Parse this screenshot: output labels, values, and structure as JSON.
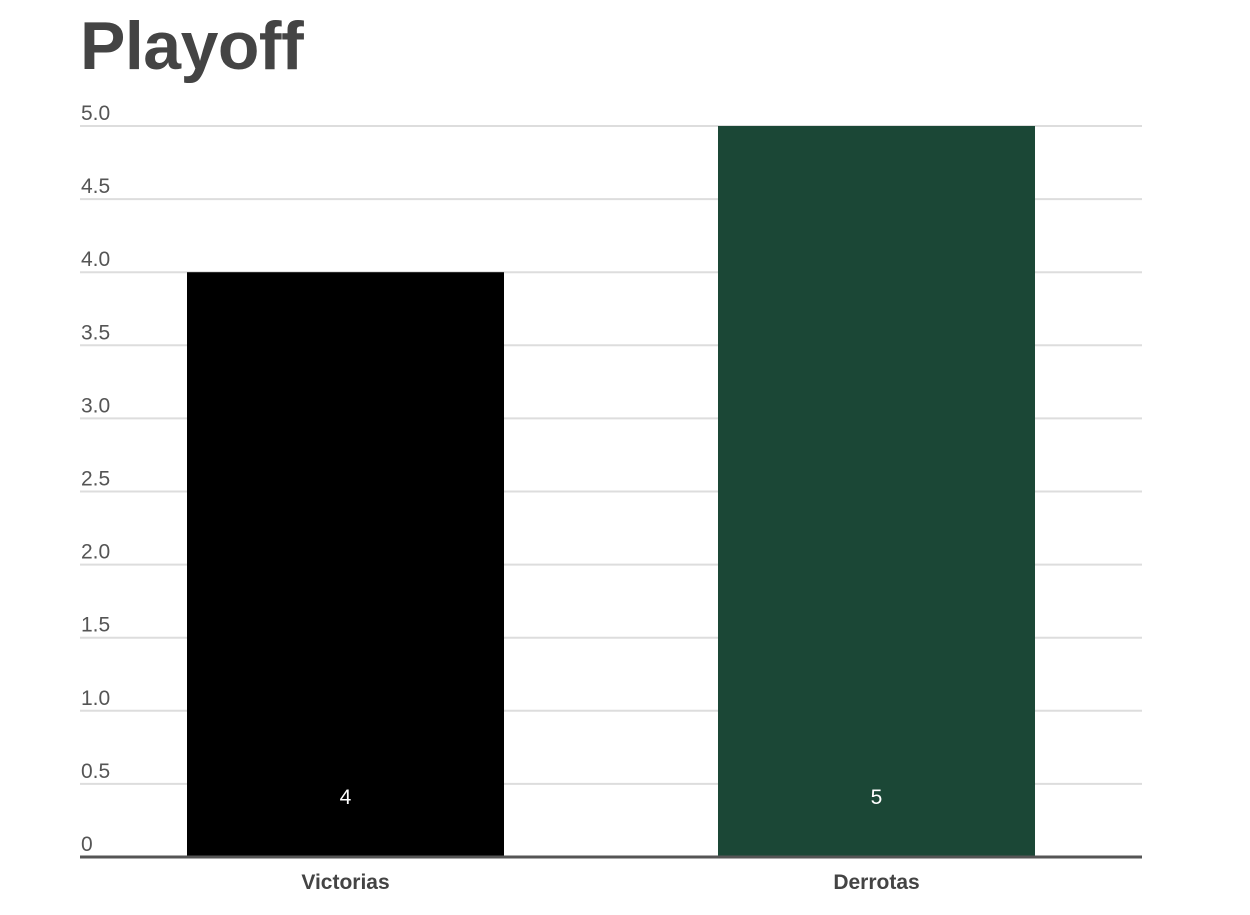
{
  "chart_data": {
    "type": "bar",
    "title": "Playoff",
    "categories": [
      "Victorias",
      "Derrotas"
    ],
    "values": [
      4,
      5
    ],
    "data_labels": [
      "4",
      "5"
    ],
    "bar_colors": [
      "#000000",
      "#1b4736"
    ],
    "ylim": [
      0,
      5
    ],
    "yticks": [
      "0",
      "0.5",
      "1.0",
      "1.5",
      "2.0",
      "2.5",
      "3.0",
      "3.5",
      "4.0",
      "4.5",
      "5.0"
    ],
    "grid": true,
    "legend": "none",
    "xlabel": "",
    "ylabel": ""
  }
}
